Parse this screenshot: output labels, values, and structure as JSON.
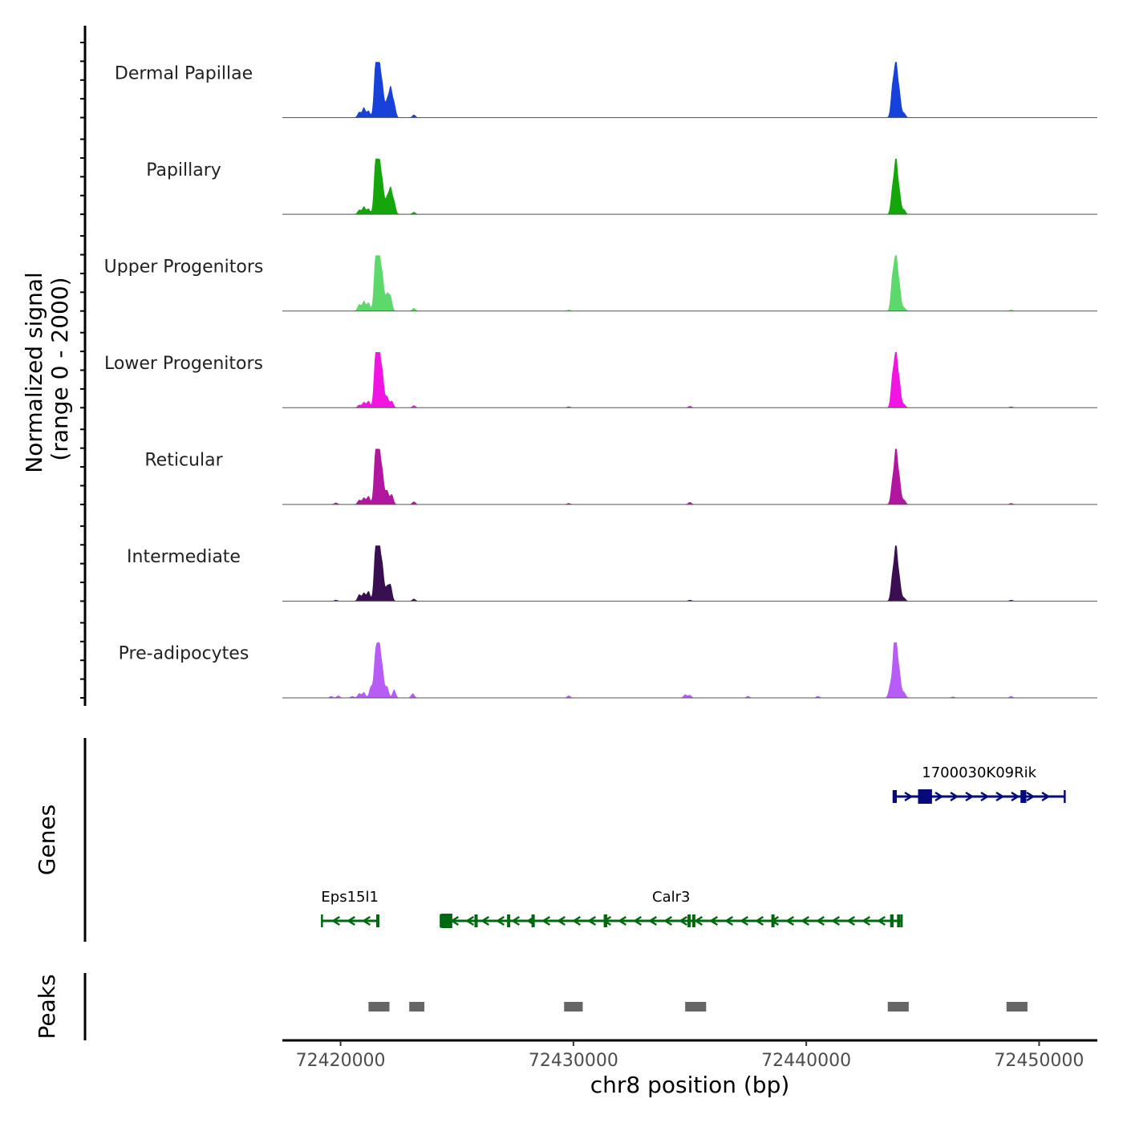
{
  "chart_data": {
    "type": "area",
    "title": "",
    "xlabel": "chr8 position (bp)",
    "ylabel": "Normalized signal\n(range 0 - 2000)",
    "ylabel_lines": [
      "Normalized signal",
      "(range 0 - 2000)"
    ],
    "xlim": [
      72417500,
      72452500
    ],
    "ylim": [
      0,
      2000
    ],
    "x_ticks": [
      72420000,
      72430000,
      72440000,
      72450000
    ],
    "x_tick_labels": [
      "72420000",
      "72430000",
      "72440000",
      "72450000"
    ],
    "series": [
      {
        "name": "Dermal Papillae",
        "color": "#1742d9",
        "peaks": [
          [
            72420800,
            0.1
          ],
          [
            72421000,
            0.18
          ],
          [
            72421200,
            0.12
          ],
          [
            72421500,
            0.95
          ],
          [
            72421650,
            1.0
          ],
          [
            72421800,
            0.55
          ],
          [
            72422000,
            0.3
          ],
          [
            72422150,
            0.52
          ],
          [
            72422300,
            0.25
          ],
          [
            72423150,
            0.05
          ],
          [
            72443700,
            0.55
          ],
          [
            72443850,
            1.0
          ],
          [
            72444000,
            0.45
          ],
          [
            72444200,
            0.08
          ]
        ]
      },
      {
        "name": "Papillary",
        "color": "#14a60a",
        "peaks": [
          [
            72420800,
            0.08
          ],
          [
            72421000,
            0.14
          ],
          [
            72421200,
            0.1
          ],
          [
            72421500,
            0.95
          ],
          [
            72421650,
            1.0
          ],
          [
            72421800,
            0.55
          ],
          [
            72422000,
            0.3
          ],
          [
            72422150,
            0.45
          ],
          [
            72422300,
            0.22
          ],
          [
            72423150,
            0.04
          ],
          [
            72443700,
            0.45
          ],
          [
            72443850,
            1.0
          ],
          [
            72444000,
            0.4
          ],
          [
            72444200,
            0.08
          ]
        ]
      },
      {
        "name": "Upper Progenitors",
        "color": "#5dd96b",
        "peaks": [
          [
            72420800,
            0.12
          ],
          [
            72421000,
            0.18
          ],
          [
            72421200,
            0.15
          ],
          [
            72421500,
            0.95
          ],
          [
            72421650,
            1.0
          ],
          [
            72421800,
            0.6
          ],
          [
            72422000,
            0.3
          ],
          [
            72422150,
            0.25
          ],
          [
            72423150,
            0.05
          ],
          [
            72429800,
            0.02
          ],
          [
            72443700,
            0.6
          ],
          [
            72443850,
            1.0
          ],
          [
            72444000,
            0.45
          ],
          [
            72444200,
            0.06
          ],
          [
            72448800,
            0.02
          ]
        ]
      },
      {
        "name": "Lower Progenitors",
        "color": "#f015e0",
        "peaks": [
          [
            72420800,
            0.05
          ],
          [
            72421000,
            0.1
          ],
          [
            72421200,
            0.12
          ],
          [
            72421500,
            0.95
          ],
          [
            72421650,
            1.0
          ],
          [
            72421800,
            0.6
          ],
          [
            72422000,
            0.2
          ],
          [
            72422200,
            0.12
          ],
          [
            72423150,
            0.04
          ],
          [
            72429800,
            0.02
          ],
          [
            72435000,
            0.03
          ],
          [
            72443700,
            0.55
          ],
          [
            72443850,
            1.0
          ],
          [
            72444000,
            0.45
          ],
          [
            72444200,
            0.06
          ],
          [
            72448800,
            0.02
          ]
        ]
      },
      {
        "name": "Reticular",
        "color": "#b0169e",
        "peaks": [
          [
            72419800,
            0.03
          ],
          [
            72420800,
            0.08
          ],
          [
            72421000,
            0.12
          ],
          [
            72421200,
            0.15
          ],
          [
            72421500,
            0.95
          ],
          [
            72421650,
            1.0
          ],
          [
            72421800,
            0.55
          ],
          [
            72422000,
            0.25
          ],
          [
            72422200,
            0.18
          ],
          [
            72423150,
            0.05
          ],
          [
            72429800,
            0.02
          ],
          [
            72435000,
            0.04
          ],
          [
            72443700,
            0.4
          ],
          [
            72443850,
            1.0
          ],
          [
            72444000,
            0.45
          ],
          [
            72444200,
            0.08
          ],
          [
            72448800,
            0.02
          ]
        ]
      },
      {
        "name": "Intermediate",
        "color": "#3a0f52",
        "peaks": [
          [
            72419800,
            0.02
          ],
          [
            72420800,
            0.12
          ],
          [
            72421000,
            0.15
          ],
          [
            72421200,
            0.18
          ],
          [
            72421500,
            0.95
          ],
          [
            72421650,
            1.0
          ],
          [
            72421800,
            0.6
          ],
          [
            72422000,
            0.25
          ],
          [
            72422150,
            0.28
          ],
          [
            72423150,
            0.04
          ],
          [
            72435000,
            0.02
          ],
          [
            72443700,
            0.45
          ],
          [
            72443850,
            1.0
          ],
          [
            72444000,
            0.4
          ],
          [
            72444200,
            0.06
          ],
          [
            72448800,
            0.02
          ]
        ]
      },
      {
        "name": "Pre-adipocytes",
        "color": "#b75cf5",
        "peaks": [
          [
            72419600,
            0.03
          ],
          [
            72419900,
            0.04
          ],
          [
            72420500,
            0.03
          ],
          [
            72420800,
            0.08
          ],
          [
            72421000,
            0.1
          ],
          [
            72421300,
            0.2
          ],
          [
            72421500,
            0.8
          ],
          [
            72421650,
            1.0
          ],
          [
            72421800,
            0.5
          ],
          [
            72422000,
            0.2
          ],
          [
            72422300,
            0.15
          ],
          [
            72423100,
            0.08
          ],
          [
            72429800,
            0.04
          ],
          [
            72434800,
            0.06
          ],
          [
            72435000,
            0.05
          ],
          [
            72437500,
            0.03
          ],
          [
            72440500,
            0.03
          ],
          [
            72443600,
            0.2
          ],
          [
            72443750,
            0.6
          ],
          [
            72443850,
            1.0
          ],
          [
            72444000,
            0.45
          ],
          [
            72444200,
            0.1
          ],
          [
            72446300,
            0.02
          ],
          [
            72448800,
            0.03
          ]
        ]
      }
    ],
    "genes": [
      {
        "name": "1700030K09Rik",
        "color": "#050a7d",
        "strand": "+",
        "start": 72443750,
        "end": 72451100,
        "row": 1,
        "exons": [
          [
            72443750,
            72443800
          ],
          [
            72444800,
            72445400
          ],
          [
            72449200,
            72449450
          ]
        ]
      },
      {
        "name": "Eps15l1",
        "color": "#00690f",
        "strand": "-",
        "start": 72419200,
        "end": 72421600,
        "row": 2,
        "exons": [
          [
            72421530,
            72421600
          ]
        ]
      },
      {
        "name": "Calr3",
        "color": "#00690f",
        "strand": "-",
        "start": 72424300,
        "end": 72444100,
        "row": 2,
        "exons": [
          [
            72424300,
            72424800
          ],
          [
            72425750,
            72425850
          ],
          [
            72427150,
            72427250
          ],
          [
            72428200,
            72428300
          ],
          [
            72431300,
            72431450
          ],
          [
            72434900,
            72435000
          ],
          [
            72435100,
            72435200
          ],
          [
            72438500,
            72438600
          ],
          [
            72443600,
            72443750
          ],
          [
            72443900,
            72444050
          ]
        ]
      }
    ],
    "peak_regions": [
      [
        72421200,
        72422100
      ],
      [
        72422950,
        72423600
      ],
      [
        72429600,
        72430400
      ],
      [
        72434800,
        72435700
      ],
      [
        72443500,
        72444400
      ],
      [
        72448600,
        72449500
      ]
    ],
    "panel_labels": {
      "genes": "Genes",
      "peaks": "Peaks"
    }
  }
}
